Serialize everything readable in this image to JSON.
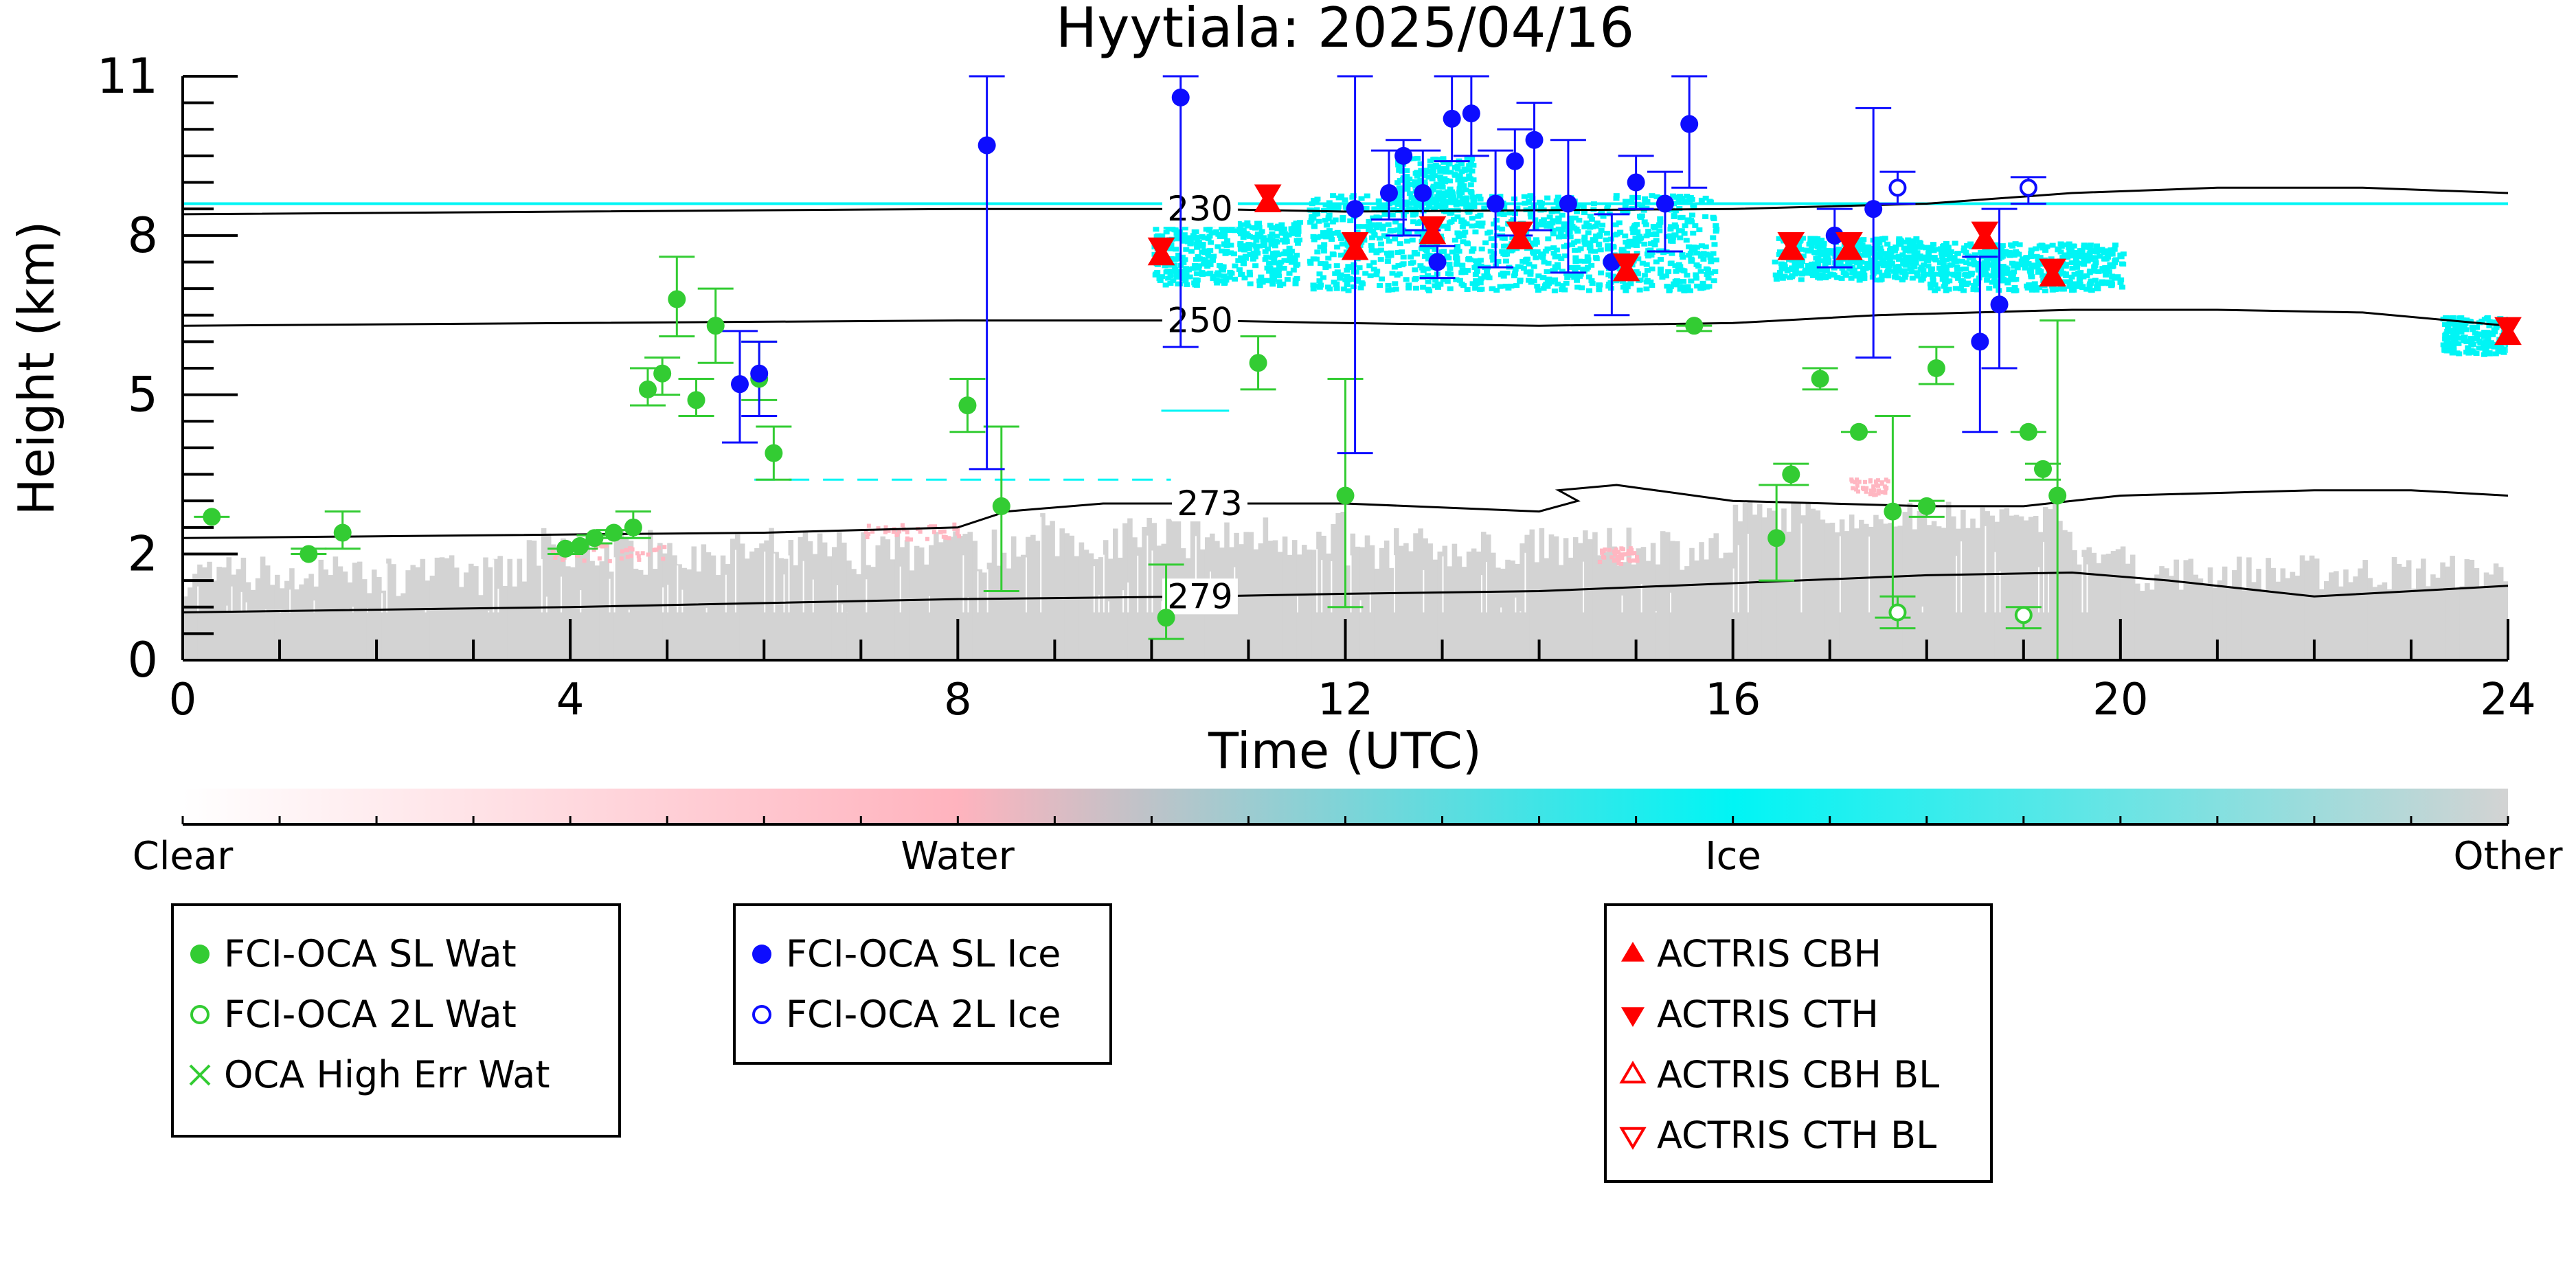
{
  "chart_data": {
    "type": "scatter",
    "title": "Hyytiala: 2025/04/16",
    "xlabel": "Time (UTC)",
    "ylabel": "Height (km)",
    "xlim": [
      0,
      24
    ],
    "ylim": [
      0,
      11
    ],
    "xticks": [
      0,
      4,
      8,
      12,
      16,
      20,
      24
    ],
    "yticks": [
      0,
      2,
      5,
      8,
      11
    ],
    "ytick_labels": [
      "0",
      "2",
      "5",
      "8",
      "11"
    ],
    "colorbar": {
      "labels": [
        "Clear",
        "Water",
        "Ice",
        "Other"
      ],
      "colors": [
        "#ffffff",
        "#ffb3be",
        "#00f5f5",
        "#d3d3d3"
      ]
    },
    "contours": [
      {
        "label": "230",
        "label_at": [
          10.5,
          8.5
        ],
        "points": [
          [
            0,
            8.4
          ],
          [
            4,
            8.45
          ],
          [
            8,
            8.5
          ],
          [
            10.5,
            8.5
          ],
          [
            12,
            8.45
          ],
          [
            16,
            8.5
          ],
          [
            18,
            8.6
          ],
          [
            19.5,
            8.8
          ],
          [
            21,
            8.9
          ],
          [
            22.5,
            8.9
          ],
          [
            24,
            8.8
          ]
        ]
      },
      {
        "label": "250",
        "label_at": [
          10.5,
          6.4
        ],
        "points": [
          [
            0,
            6.3
          ],
          [
            4,
            6.35
          ],
          [
            8,
            6.4
          ],
          [
            10.5,
            6.4
          ],
          [
            12,
            6.35
          ],
          [
            14,
            6.3
          ],
          [
            16,
            6.35
          ],
          [
            17.5,
            6.5
          ],
          [
            19.5,
            6.6
          ],
          [
            21,
            6.6
          ],
          [
            22.5,
            6.55
          ],
          [
            24,
            6.3
          ]
        ]
      },
      {
        "label": "273",
        "label_at": [
          10.6,
          2.95
        ],
        "points": [
          [
            0,
            2.3
          ],
          [
            3,
            2.35
          ],
          [
            6,
            2.4
          ],
          [
            8,
            2.5
          ],
          [
            8.5,
            2.8
          ],
          [
            9.5,
            2.95
          ],
          [
            12,
            2.95
          ],
          [
            14,
            2.8
          ],
          [
            14.4,
            3.0
          ],
          [
            14.2,
            3.2
          ],
          [
            14.8,
            3.3
          ],
          [
            16,
            3.0
          ],
          [
            18,
            2.9
          ],
          [
            19,
            2.9
          ],
          [
            20,
            3.1
          ],
          [
            21,
            3.15
          ],
          [
            22,
            3.2
          ],
          [
            23,
            3.2
          ],
          [
            24,
            3.1
          ]
        ]
      },
      {
        "label": "279",
        "label_at": [
          10.5,
          1.2
        ],
        "points": [
          [
            0,
            0.9
          ],
          [
            4,
            1.0
          ],
          [
            8,
            1.15
          ],
          [
            10.5,
            1.2
          ],
          [
            12,
            1.25
          ],
          [
            14,
            1.3
          ],
          [
            16,
            1.45
          ],
          [
            18,
            1.6
          ],
          [
            19.5,
            1.65
          ],
          [
            20.5,
            1.5
          ],
          [
            22,
            1.2
          ],
          [
            24,
            1.4
          ]
        ]
      }
    ],
    "series": [
      {
        "name": "FCI-OCA SL Wat",
        "marker": "filled-circle",
        "color": "#33cc33",
        "points": [
          [
            0.3,
            2.7,
            2.7,
            2.7
          ],
          [
            1.3,
            2.0,
            2.0,
            2.1
          ],
          [
            1.65,
            2.4,
            2.1,
            2.8
          ],
          [
            3.95,
            2.1,
            2.0,
            2.1
          ],
          [
            4.1,
            2.15,
            2.1,
            2.2
          ],
          [
            4.25,
            2.3,
            2.2,
            2.35
          ],
          [
            4.45,
            2.4,
            2.3,
            2.45
          ],
          [
            4.65,
            2.5,
            2.3,
            2.8
          ],
          [
            4.8,
            5.1,
            4.8,
            5.5
          ],
          [
            4.95,
            5.4,
            5.0,
            5.7
          ],
          [
            5.1,
            6.8,
            6.1,
            7.6
          ],
          [
            5.3,
            4.9,
            4.6,
            5.3
          ],
          [
            5.5,
            6.3,
            5.6,
            7.0
          ],
          [
            5.95,
            5.3,
            4.9,
            6.0
          ],
          [
            6.1,
            3.9,
            3.4,
            4.4
          ],
          [
            8.1,
            4.8,
            4.3,
            5.3
          ],
          [
            8.45,
            2.9,
            1.3,
            4.4
          ],
          [
            10.15,
            0.8,
            0.4,
            1.8
          ],
          [
            11.1,
            5.6,
            5.1,
            6.1
          ],
          [
            12.0,
            3.1,
            1.0,
            5.3
          ],
          [
            15.6,
            6.3,
            6.2,
            6.3
          ],
          [
            16.45,
            2.3,
            1.5,
            3.3
          ],
          [
            16.6,
            3.5,
            3.3,
            3.7
          ],
          [
            16.9,
            5.3,
            5.1,
            5.5
          ],
          [
            17.3,
            4.3,
            4.3,
            4.3
          ],
          [
            17.65,
            2.8,
            0.8,
            4.6
          ],
          [
            18.0,
            2.9,
            2.7,
            3.0
          ],
          [
            18.1,
            5.5,
            5.2,
            5.9
          ],
          [
            19.05,
            4.3,
            4.3,
            4.3
          ],
          [
            19.2,
            3.6,
            3.4,
            3.7
          ],
          [
            19.35,
            3.1,
            0.0,
            6.4
          ]
        ]
      },
      {
        "name": "FCI-OCA 2L Wat",
        "marker": "open-circle",
        "color": "#33cc33",
        "points": [
          [
            17.7,
            0.9,
            0.6,
            1.2
          ],
          [
            19.0,
            0.85,
            0.6,
            1.0
          ]
        ]
      },
      {
        "name": "OCA High Err Wat",
        "marker": "x",
        "color": "#33cc33",
        "points": []
      },
      {
        "name": "FCI-OCA SL Ice",
        "marker": "filled-circle",
        "color": "#0d0dff",
        "points": [
          [
            5.75,
            5.2,
            4.1,
            6.2
          ],
          [
            5.95,
            5.4,
            4.6,
            6.0
          ],
          [
            8.3,
            9.7,
            3.6,
            11.0
          ],
          [
            10.3,
            10.6,
            5.9,
            11.0
          ],
          [
            12.1,
            8.5,
            3.9,
            11.0
          ],
          [
            12.45,
            8.8,
            8.3,
            9.6
          ],
          [
            12.6,
            9.5,
            8.0,
            9.8
          ],
          [
            12.8,
            8.8,
            8.1,
            9.6
          ],
          [
            12.95,
            7.5,
            7.2,
            7.8
          ],
          [
            13.1,
            10.2,
            9.4,
            11.0
          ],
          [
            13.3,
            10.3,
            9.5,
            11.0
          ],
          [
            13.55,
            8.6,
            7.4,
            9.6
          ],
          [
            13.75,
            9.4,
            8.0,
            10.0
          ],
          [
            13.95,
            9.8,
            8.1,
            10.5
          ],
          [
            14.3,
            8.6,
            7.3,
            9.8
          ],
          [
            14.75,
            7.5,
            6.5,
            8.4
          ],
          [
            15.0,
            9.0,
            8.5,
            9.5
          ],
          [
            15.3,
            8.6,
            7.7,
            9.2
          ],
          [
            15.55,
            10.1,
            8.9,
            11.0
          ],
          [
            17.05,
            8.0,
            7.4,
            8.5
          ],
          [
            17.45,
            8.5,
            5.7,
            10.4
          ],
          [
            18.55,
            6.0,
            4.3,
            7.6
          ],
          [
            18.75,
            6.7,
            5.5,
            8.5
          ]
        ]
      },
      {
        "name": "FCI-OCA 2L Ice",
        "marker": "open-circle",
        "color": "#0d0dff",
        "points": [
          [
            17.7,
            8.9,
            8.6,
            9.2
          ],
          [
            19.05,
            8.9,
            8.6,
            9.1
          ]
        ]
      },
      {
        "name": "ACTRIS CBH",
        "marker": "filled-triangle-up",
        "color": "#ff0000",
        "points": [
          [
            10.1,
            7.6
          ],
          [
            11.2,
            8.6
          ],
          [
            12.1,
            7.7
          ],
          [
            12.9,
            8.0
          ],
          [
            13.8,
            7.9
          ],
          [
            14.9,
            7.3
          ],
          [
            16.6,
            7.7
          ],
          [
            17.2,
            7.7
          ],
          [
            18.6,
            7.9
          ],
          [
            19.3,
            7.2
          ],
          [
            24.0,
            6.1
          ]
        ]
      },
      {
        "name": "ACTRIS CTH",
        "marker": "filled-triangle-down",
        "color": "#ff0000",
        "points": [
          [
            10.1,
            7.8
          ],
          [
            11.2,
            8.8
          ],
          [
            12.1,
            7.9
          ],
          [
            12.9,
            8.2
          ],
          [
            13.8,
            8.1
          ],
          [
            14.9,
            7.5
          ],
          [
            16.6,
            7.9
          ],
          [
            17.2,
            7.9
          ],
          [
            18.6,
            8.1
          ],
          [
            19.3,
            7.4
          ],
          [
            24.0,
            6.3
          ]
        ]
      },
      {
        "name": "ACTRIS CBH BL",
        "marker": "open-triangle-up",
        "color": "#ff0000",
        "points": []
      },
      {
        "name": "ACTRIS CTH BL",
        "marker": "open-triangle-down",
        "color": "#ff0000",
        "points": []
      }
    ],
    "legend_placement": "below the colorbar, three boxes"
  }
}
